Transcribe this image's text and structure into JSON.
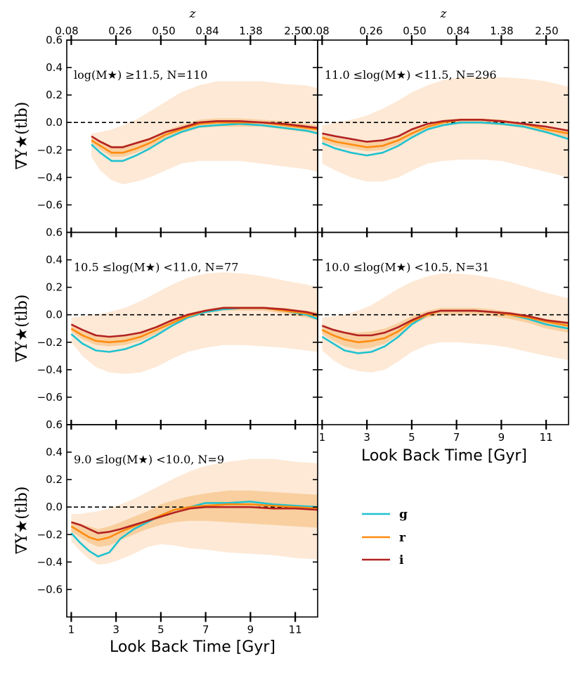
{
  "colors": {
    "g": "#20c2cf",
    "r": "#ff8c10",
    "i": "#b22222",
    "band_outer": "#fde9d6",
    "band_inner": "#f9cf9f"
  },
  "chart_data": {
    "type": "line",
    "ylim": [
      -0.8,
      0.6
    ],
    "xlim": [
      0.8,
      12
    ],
    "yticks": [
      "0.6",
      "0.4",
      "0.2",
      "0.0",
      "−0.2",
      "−0.4",
      "−0.6"
    ],
    "yticks_values": [
      0.6,
      0.4,
      0.2,
      0.0,
      -0.2,
      -0.4,
      -0.6
    ],
    "xticks": [
      "1",
      "3",
      "5",
      "7",
      "9",
      "11"
    ],
    "xticks_values": [
      1,
      3,
      5,
      7,
      9,
      11
    ],
    "ztick_labels": [
      "0.08",
      "0.26",
      "0.50",
      "0.84",
      "1.38",
      "2.50"
    ],
    "ztick_positions_gyr": [
      1,
      3,
      5,
      7,
      9,
      11
    ],
    "ztitle": "z",
    "xlabel": "Look Back Time [Gyr]",
    "ylabel": "∇Υ★(tlb)",
    "legend": [
      {
        "key": "g",
        "label": "g"
      },
      {
        "key": "r",
        "label": "r"
      },
      {
        "key": "i",
        "label": "i"
      }
    ],
    "panels": [
      {
        "annotation": "log(M★) ≥11.5, N=110",
        "x": [
          1.9,
          2.3,
          2.8,
          3.3,
          3.9,
          4.5,
          5.2,
          5.9,
          6.7,
          7.5,
          8.5,
          9.5,
          10.5,
          11.5,
          12
        ],
        "g": [
          -0.16,
          -0.22,
          -0.28,
          -0.28,
          -0.24,
          -0.19,
          -0.12,
          -0.07,
          -0.03,
          -0.02,
          -0.01,
          -0.02,
          -0.04,
          -0.06,
          -0.08
        ],
        "r": [
          -0.13,
          -0.17,
          -0.22,
          -0.22,
          -0.19,
          -0.15,
          -0.09,
          -0.05,
          -0.01,
          0.0,
          0.0,
          0.0,
          -0.02,
          -0.04,
          -0.05
        ],
        "i": [
          -0.1,
          -0.14,
          -0.18,
          -0.18,
          -0.15,
          -0.12,
          -0.07,
          -0.04,
          0.0,
          0.01,
          0.01,
          0.0,
          -0.01,
          -0.03,
          -0.04
        ],
        "band_outer_upper": [
          -0.08,
          -0.07,
          -0.05,
          -0.02,
          0.02,
          0.08,
          0.15,
          0.22,
          0.27,
          0.3,
          0.3,
          0.3,
          0.28,
          0.27,
          0.25
        ],
        "band_outer_lower": [
          -0.25,
          -0.35,
          -0.42,
          -0.45,
          -0.43,
          -0.4,
          -0.35,
          -0.3,
          -0.28,
          -0.28,
          -0.28,
          -0.3,
          -0.32,
          -0.34,
          -0.36
        ],
        "band_inner_upper": [
          -0.1,
          -0.13,
          -0.17,
          -0.17,
          -0.14,
          -0.11,
          -0.06,
          -0.02,
          0.02,
          0.03,
          0.03,
          0.02,
          0.01,
          -0.01,
          -0.02
        ],
        "band_inner_lower": [
          -0.15,
          -0.2,
          -0.25,
          -0.25,
          -0.22,
          -0.18,
          -0.12,
          -0.08,
          -0.04,
          -0.03,
          -0.03,
          -0.03,
          -0.05,
          -0.07,
          -0.08
        ]
      },
      {
        "annotation": "11.0 ≤log(M★) <11.5, N=296",
        "x": [
          1.0,
          1.6,
          2.3,
          3.0,
          3.7,
          4.4,
          5.0,
          5.7,
          6.4,
          7.2,
          8.1,
          9.0,
          10.0,
          11.0,
          12.0
        ],
        "g": [
          -0.15,
          -0.19,
          -0.22,
          -0.24,
          -0.22,
          -0.17,
          -0.11,
          -0.05,
          -0.02,
          0.0,
          0.0,
          -0.01,
          -0.03,
          -0.07,
          -0.12
        ],
        "r": [
          -0.11,
          -0.14,
          -0.16,
          -0.18,
          -0.17,
          -0.13,
          -0.08,
          -0.03,
          0.0,
          0.02,
          0.02,
          0.01,
          -0.01,
          -0.05,
          -0.08
        ],
        "i": [
          -0.08,
          -0.1,
          -0.12,
          -0.14,
          -0.13,
          -0.1,
          -0.05,
          -0.01,
          0.01,
          0.02,
          0.02,
          0.01,
          -0.01,
          -0.03,
          -0.06
        ],
        "band_outer_upper": [
          -0.02,
          0.0,
          0.02,
          0.05,
          0.1,
          0.16,
          0.22,
          0.27,
          0.31,
          0.33,
          0.33,
          0.33,
          0.32,
          0.3,
          0.26
        ],
        "band_outer_lower": [
          -0.3,
          -0.35,
          -0.4,
          -0.43,
          -0.43,
          -0.4,
          -0.35,
          -0.3,
          -0.28,
          -0.27,
          -0.27,
          -0.28,
          -0.32,
          -0.36,
          -0.4
        ],
        "band_inner_upper": [
          -0.09,
          -0.11,
          -0.13,
          -0.14,
          -0.13,
          -0.1,
          -0.05,
          -0.01,
          0.02,
          0.03,
          0.03,
          0.02,
          0.0,
          -0.03,
          -0.05
        ],
        "band_inner_lower": [
          -0.14,
          -0.17,
          -0.19,
          -0.21,
          -0.2,
          -0.16,
          -0.1,
          -0.05,
          -0.02,
          -0.01,
          -0.01,
          -0.02,
          -0.04,
          -0.08,
          -0.11
        ]
      },
      {
        "annotation": "10.5 ≤log(M★) <11.0, N=77",
        "x": [
          1.0,
          1.5,
          2.1,
          2.7,
          3.4,
          4.1,
          4.8,
          5.5,
          6.2,
          7.0,
          7.8,
          8.7,
          9.6,
          10.5,
          11.5,
          12.0
        ],
        "g": [
          -0.14,
          -0.21,
          -0.26,
          -0.27,
          -0.25,
          -0.21,
          -0.15,
          -0.08,
          -0.02,
          0.02,
          0.04,
          0.05,
          0.05,
          0.03,
          0.0,
          -0.03
        ],
        "r": [
          -0.1,
          -0.15,
          -0.19,
          -0.2,
          -0.19,
          -0.16,
          -0.11,
          -0.06,
          -0.01,
          0.03,
          0.05,
          0.05,
          0.05,
          0.03,
          0.01,
          -0.01
        ],
        "i": [
          -0.07,
          -0.11,
          -0.15,
          -0.16,
          -0.15,
          -0.13,
          -0.09,
          -0.04,
          0.0,
          0.03,
          0.05,
          0.05,
          0.05,
          0.04,
          0.02,
          0.0
        ],
        "band_outer_upper": [
          -0.02,
          -0.01,
          0.0,
          0.02,
          0.05,
          0.1,
          0.16,
          0.22,
          0.27,
          0.3,
          0.31,
          0.3,
          0.28,
          0.25,
          0.22,
          0.2
        ],
        "band_outer_lower": [
          -0.2,
          -0.3,
          -0.38,
          -0.42,
          -0.43,
          -0.42,
          -0.38,
          -0.32,
          -0.27,
          -0.24,
          -0.22,
          -0.22,
          -0.23,
          -0.24,
          -0.26,
          -0.27
        ],
        "band_inner_upper": [
          -0.08,
          -0.12,
          -0.15,
          -0.16,
          -0.15,
          -0.12,
          -0.08,
          -0.03,
          0.01,
          0.04,
          0.06,
          0.06,
          0.06,
          0.05,
          0.03,
          0.02
        ],
        "band_inner_lower": [
          -0.12,
          -0.18,
          -0.22,
          -0.23,
          -0.22,
          -0.19,
          -0.14,
          -0.08,
          -0.03,
          0.01,
          0.03,
          0.03,
          0.03,
          0.01,
          -0.02,
          -0.04
        ]
      },
      {
        "annotation": "10.0 ≤log(M★) <10.5, N=31",
        "x": [
          1.0,
          1.5,
          2.0,
          2.6,
          3.2,
          3.8,
          4.4,
          5.0,
          5.7,
          6.3,
          7.0,
          7.8,
          8.6,
          9.4,
          10.2,
          11.0,
          12.0
        ],
        "g": [
          -0.16,
          -0.21,
          -0.26,
          -0.28,
          -0.27,
          -0.23,
          -0.16,
          -0.07,
          0.0,
          0.03,
          0.03,
          0.03,
          0.02,
          0.0,
          -0.03,
          -0.07,
          -0.1
        ],
        "r": [
          -0.11,
          -0.15,
          -0.18,
          -0.2,
          -0.19,
          -0.17,
          -0.12,
          -0.05,
          0.0,
          0.03,
          0.03,
          0.03,
          0.02,
          0.0,
          -0.02,
          -0.05,
          -0.08
        ],
        "i": [
          -0.08,
          -0.11,
          -0.13,
          -0.15,
          -0.15,
          -0.13,
          -0.09,
          -0.04,
          0.01,
          0.03,
          0.03,
          0.03,
          0.02,
          0.01,
          -0.01,
          -0.04,
          -0.06
        ],
        "band_outer_upper": [
          -0.02,
          -0.01,
          0.0,
          0.03,
          0.07,
          0.13,
          0.19,
          0.24,
          0.28,
          0.3,
          0.3,
          0.29,
          0.27,
          0.24,
          0.2,
          0.16,
          0.12
        ],
        "band_outer_lower": [
          -0.26,
          -0.33,
          -0.38,
          -0.41,
          -0.42,
          -0.4,
          -0.34,
          -0.27,
          -0.22,
          -0.2,
          -0.2,
          -0.21,
          -0.22,
          -0.24,
          -0.27,
          -0.3,
          -0.33
        ],
        "band_inner_upper": [
          -0.07,
          -0.1,
          -0.12,
          -0.13,
          -0.12,
          -0.1,
          -0.06,
          -0.01,
          0.03,
          0.05,
          0.05,
          0.05,
          0.04,
          0.02,
          0.0,
          -0.03,
          -0.05
        ],
        "band_inner_lower": [
          -0.14,
          -0.19,
          -0.23,
          -0.25,
          -0.24,
          -0.21,
          -0.15,
          -0.07,
          -0.02,
          0.0,
          0.0,
          0.0,
          -0.01,
          -0.03,
          -0.06,
          -0.1,
          -0.13
        ]
      },
      {
        "annotation": "9.0 ≤log(M★) <10.0, N=9",
        "x": [
          1.0,
          1.4,
          1.8,
          2.2,
          2.7,
          3.2,
          3.8,
          4.4,
          5.0,
          5.6,
          6.3,
          7.0,
          8.0,
          9.0,
          10.0,
          11.0,
          12.0
        ],
        "g": [
          -0.19,
          -0.26,
          -0.32,
          -0.36,
          -0.33,
          -0.23,
          -0.16,
          -0.11,
          -0.06,
          -0.02,
          0.0,
          0.03,
          0.03,
          0.04,
          0.02,
          0.01,
          0.0
        ],
        "r": [
          -0.14,
          -0.18,
          -0.22,
          -0.24,
          -0.22,
          -0.18,
          -0.14,
          -0.1,
          -0.06,
          -0.02,
          0.0,
          0.01,
          0.02,
          0.02,
          0.01,
          0.0,
          -0.01
        ],
        "i": [
          -0.11,
          -0.13,
          -0.16,
          -0.19,
          -0.18,
          -0.16,
          -0.13,
          -0.1,
          -0.07,
          -0.04,
          -0.01,
          0.0,
          0.0,
          0.0,
          -0.01,
          -0.01,
          -0.02
        ],
        "band_outer_upper": [
          -0.05,
          -0.05,
          -0.04,
          -0.03,
          -0.01,
          0.02,
          0.06,
          0.11,
          0.16,
          0.21,
          0.26,
          0.3,
          0.33,
          0.35,
          0.35,
          0.33,
          0.32
        ],
        "band_outer_lower": [
          -0.25,
          -0.32,
          -0.38,
          -0.42,
          -0.41,
          -0.38,
          -0.34,
          -0.29,
          -0.27,
          -0.28,
          -0.3,
          -0.31,
          -0.33,
          -0.34,
          -0.35,
          -0.37,
          -0.38
        ],
        "band_inner_upper": [
          -0.1,
          -0.12,
          -0.14,
          -0.16,
          -0.14,
          -0.11,
          -0.07,
          -0.03,
          0.02,
          0.05,
          0.08,
          0.1,
          0.12,
          0.12,
          0.11,
          0.1,
          0.09
        ],
        "band_inner_lower": [
          -0.18,
          -0.22,
          -0.26,
          -0.29,
          -0.28,
          -0.24,
          -0.2,
          -0.16,
          -0.13,
          -0.11,
          -0.1,
          -0.1,
          -0.11,
          -0.12,
          -0.13,
          -0.14,
          -0.15
        ]
      }
    ]
  }
}
